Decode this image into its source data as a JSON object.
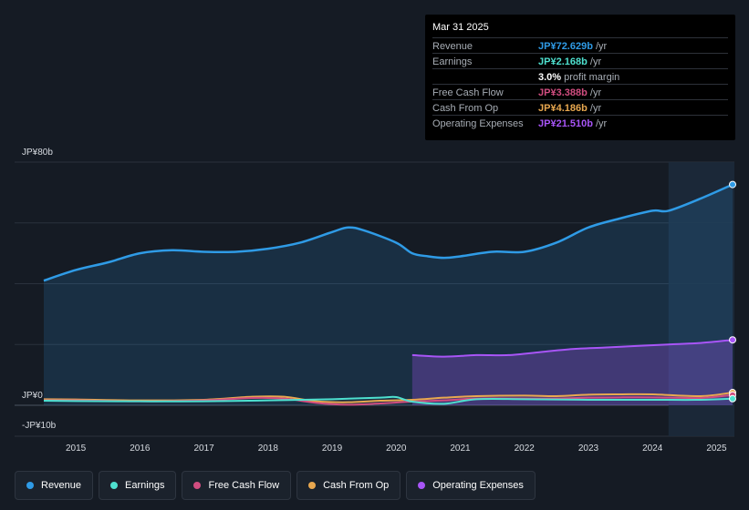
{
  "chart_data": {
    "type": "line",
    "y_axis": {
      "top_label": "JP¥80b",
      "zero_label": "JP¥0",
      "bottom_label": "-JP¥10b",
      "ylim": [
        -10,
        80
      ]
    },
    "x_ticks": [
      "2015",
      "2016",
      "2017",
      "2018",
      "2019",
      "2020",
      "2021",
      "2022",
      "2023",
      "2024",
      "2025"
    ],
    "x_range": [
      2014.5,
      2025.25
    ],
    "highlight_start": 2024.25,
    "series": [
      {
        "name": "Revenue",
        "key": "revenue",
        "color": "#2f9be6",
        "fill": true,
        "points": [
          [
            2014.5,
            41
          ],
          [
            2015,
            44.5
          ],
          [
            2015.5,
            47
          ],
          [
            2016,
            50
          ],
          [
            2016.5,
            51
          ],
          [
            2017,
            50.5
          ],
          [
            2017.5,
            50.5
          ],
          [
            2018,
            51.5
          ],
          [
            2018.5,
            53.5
          ],
          [
            2019,
            57
          ],
          [
            2019.25,
            58.5
          ],
          [
            2019.5,
            57.5
          ],
          [
            2020,
            53.5
          ],
          [
            2020.25,
            50
          ],
          [
            2020.5,
            49
          ],
          [
            2020.75,
            48.5
          ],
          [
            2021,
            49
          ],
          [
            2021.5,
            50.5
          ],
          [
            2022,
            50.5
          ],
          [
            2022.5,
            53.5
          ],
          [
            2023,
            58.5
          ],
          [
            2023.5,
            61.5
          ],
          [
            2024,
            64
          ],
          [
            2024.25,
            64
          ],
          [
            2024.75,
            68
          ],
          [
            2025.25,
            72.629
          ]
        ]
      },
      {
        "name": "Operating Expenses",
        "key": "opex",
        "color": "#a855f7",
        "fill": true,
        "points": [
          [
            2020.25,
            16.5
          ],
          [
            2020.75,
            16
          ],
          [
            2021.25,
            16.5
          ],
          [
            2021.75,
            16.5
          ],
          [
            2022.25,
            17.5
          ],
          [
            2022.75,
            18.5
          ],
          [
            2023.25,
            19
          ],
          [
            2023.75,
            19.5
          ],
          [
            2024.25,
            20
          ],
          [
            2024.75,
            20.5
          ],
          [
            2025.25,
            21.51
          ]
        ]
      },
      {
        "name": "Earnings",
        "key": "earnings",
        "color": "#4ee0cf",
        "fill": false,
        "points": [
          [
            2014.5,
            1.5
          ],
          [
            2015,
            1.4
          ],
          [
            2016,
            1.3
          ],
          [
            2017,
            1.3
          ],
          [
            2018,
            1.6
          ],
          [
            2019,
            2
          ],
          [
            2019.75,
            2.5
          ],
          [
            2020,
            2.7
          ],
          [
            2020.25,
            1.2
          ],
          [
            2020.75,
            0.5
          ],
          [
            2021.25,
            2.0
          ],
          [
            2022,
            2.0
          ],
          [
            2023,
            1.8
          ],
          [
            2024,
            1.8
          ],
          [
            2024.75,
            1.8
          ],
          [
            2025.25,
            2.168
          ]
        ]
      },
      {
        "name": "Free Cash Flow",
        "key": "fcf",
        "color": "#d14d80",
        "fill": false,
        "points": [
          [
            2014.5,
            1.6
          ],
          [
            2015,
            1.6
          ],
          [
            2016,
            1.3
          ],
          [
            2017,
            1.6
          ],
          [
            2017.75,
            2.4
          ],
          [
            2018.25,
            2.2
          ],
          [
            2018.75,
            0.8
          ],
          [
            2019.25,
            0.2
          ],
          [
            2019.75,
            0.6
          ],
          [
            2020.25,
            1.2
          ],
          [
            2020.75,
            1.6
          ],
          [
            2021.25,
            2.2
          ],
          [
            2022,
            2.2
          ],
          [
            2022.5,
            2.2
          ],
          [
            2023,
            2.5
          ],
          [
            2023.5,
            2.6
          ],
          [
            2024,
            2.6
          ],
          [
            2024.75,
            2.4
          ],
          [
            2025.25,
            3.388
          ]
        ]
      },
      {
        "name": "Cash From Op",
        "key": "cfo",
        "color": "#e9a84f",
        "fill": false,
        "points": [
          [
            2014.5,
            2
          ],
          [
            2015,
            1.9
          ],
          [
            2016,
            1.6
          ],
          [
            2017,
            1.8
          ],
          [
            2017.75,
            2.8
          ],
          [
            2018.25,
            2.8
          ],
          [
            2018.75,
            1.3
          ],
          [
            2019.25,
            1.0
          ],
          [
            2019.75,
            1.5
          ],
          [
            2020.25,
            1.8
          ],
          [
            2020.75,
            2.5
          ],
          [
            2021.25,
            3.0
          ],
          [
            2022,
            3.2
          ],
          [
            2022.5,
            3.0
          ],
          [
            2023,
            3.5
          ],
          [
            2023.5,
            3.6
          ],
          [
            2024,
            3.6
          ],
          [
            2024.75,
            3.0
          ],
          [
            2025.25,
            4.186
          ]
        ]
      }
    ]
  },
  "tooltip": {
    "date": "Mar 31 2025",
    "rows": [
      {
        "label": "Revenue",
        "value": "JP¥72.629b",
        "unit": " /yr",
        "color": "#2f9be6"
      },
      {
        "label": "Earnings",
        "value": "JP¥2.168b",
        "unit": " /yr",
        "color": "#4ee0cf"
      },
      {
        "label": "",
        "value": "3.0%",
        "unit": " profit margin",
        "color": "#ffffff"
      },
      {
        "label": "Free Cash Flow",
        "value": "JP¥3.388b",
        "unit": " /yr",
        "color": "#d14d80"
      },
      {
        "label": "Cash From Op",
        "value": "JP¥4.186b",
        "unit": " /yr",
        "color": "#e9a84f"
      },
      {
        "label": "Operating Expenses",
        "value": "JP¥21.510b",
        "unit": " /yr",
        "color": "#a855f7"
      }
    ]
  },
  "legend": [
    {
      "label": "Revenue",
      "color": "#2f9be6"
    },
    {
      "label": "Earnings",
      "color": "#4ee0cf"
    },
    {
      "label": "Free Cash Flow",
      "color": "#d14d80"
    },
    {
      "label": "Cash From Op",
      "color": "#e9a84f"
    },
    {
      "label": "Operating Expenses",
      "color": "#a855f7"
    }
  ]
}
